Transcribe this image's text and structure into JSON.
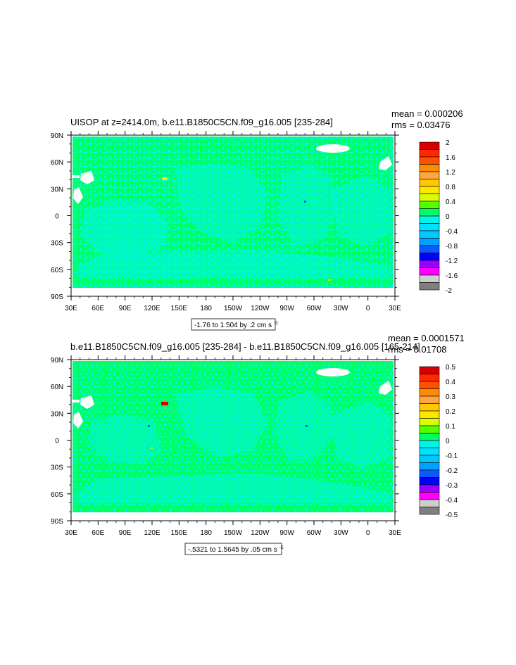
{
  "panels": [
    {
      "title": "UISOP at z=2414.0m, b.e11.B1850C5CN.f09_g16.005 [235-284]",
      "mean": "mean = 0.000206",
      "rms": "rms = 0.03476",
      "range_label": "-1.76 to 1.504 by .2 cm s",
      "range_sup": "-1",
      "colorbar": {
        "labels": [
          "2",
          "1.6",
          "1.2",
          "0.8",
          "0.4",
          "0",
          "-0.4",
          "-0.8",
          "-1.2",
          "-1.6",
          "-2"
        ]
      }
    },
    {
      "title": "b.e11.B1850C5CN.f09_g16.005 [235-284] - b.e11.B1850C5CN.f09_g16.005 [165-214]",
      "mean": "mean = 0.0001571",
      "rms": "rms = 0.01708",
      "range_label": "-.5321 to 1.5645 by .05 cm s",
      "range_sup": "-1",
      "colorbar": {
        "labels": [
          "0.5",
          "0.4",
          "0.3",
          "0.2",
          "0.1",
          "0",
          "-0.1",
          "-0.2",
          "-0.3",
          "-0.4",
          "-0.5"
        ]
      }
    }
  ],
  "axes": {
    "x_ticks": [
      "30E",
      "60E",
      "90E",
      "120E",
      "150E",
      "180",
      "150W",
      "120W",
      "90W",
      "60W",
      "30W",
      "0",
      "30E"
    ],
    "y_ticks": [
      "90N",
      "60N",
      "30N",
      "0",
      "30S",
      "60S",
      "90S"
    ]
  },
  "colors": {
    "palette": [
      "#7f7f7f",
      "#cdcdcd",
      "#ff00ff",
      "#9b00ff",
      "#0000ff",
      "#0b5aff",
      "#00a2ff",
      "#00c8ff",
      "#00e1ff",
      "#00f5e6",
      "#00ff64",
      "#55ff00",
      "#d7ff00",
      "#ffe600",
      "#ffc800",
      "#ffa53c",
      "#ff8c00",
      "#ff5000",
      "#ff2800",
      "#d70000"
    ],
    "ocean": "#00ff64",
    "pattern": "#00f5e6"
  },
  "chart_data": [
    {
      "type": "heatmap",
      "title": "UISOP at z=2414.0m, b.e11.B1850C5CN.f09_g16.005 [235-284]",
      "x_range": [
        "30E",
        "30E"
      ],
      "y_range": [
        "90S",
        "90N"
      ],
      "contour_min": -1.76,
      "contour_max": 1.504,
      "contour_interval": 0.2,
      "units": "cm s-1",
      "mean": 0.000206,
      "rms": 0.03476,
      "colorbar_levels": [
        -2,
        -1.8,
        -1.6,
        -1.4,
        -1.2,
        -1,
        -0.8,
        -0.6,
        -0.4,
        -0.2,
        0,
        0.2,
        0.4,
        0.6,
        0.8,
        1,
        1.2,
        1.4,
        1.6,
        1.8,
        2
      ]
    },
    {
      "type": "heatmap",
      "title": "b.e11.B1850C5CN.f09_g16.005 [235-284] - b.e11.B1850C5CN.f09_g16.005 [165-214]",
      "x_range": [
        "30E",
        "30E"
      ],
      "y_range": [
        "90S",
        "90N"
      ],
      "contour_min": -0.5321,
      "contour_max": 1.5645,
      "contour_interval": 0.05,
      "units": "cm s-1",
      "mean": 0.0001571,
      "rms": 0.01708,
      "colorbar_levels": [
        -0.5,
        -0.45,
        -0.4,
        -0.35,
        -0.3,
        -0.25,
        -0.2,
        -0.15,
        -0.1,
        -0.05,
        0,
        0.05,
        0.1,
        0.15,
        0.2,
        0.25,
        0.3,
        0.35,
        0.4,
        0.45,
        0.5
      ]
    }
  ]
}
